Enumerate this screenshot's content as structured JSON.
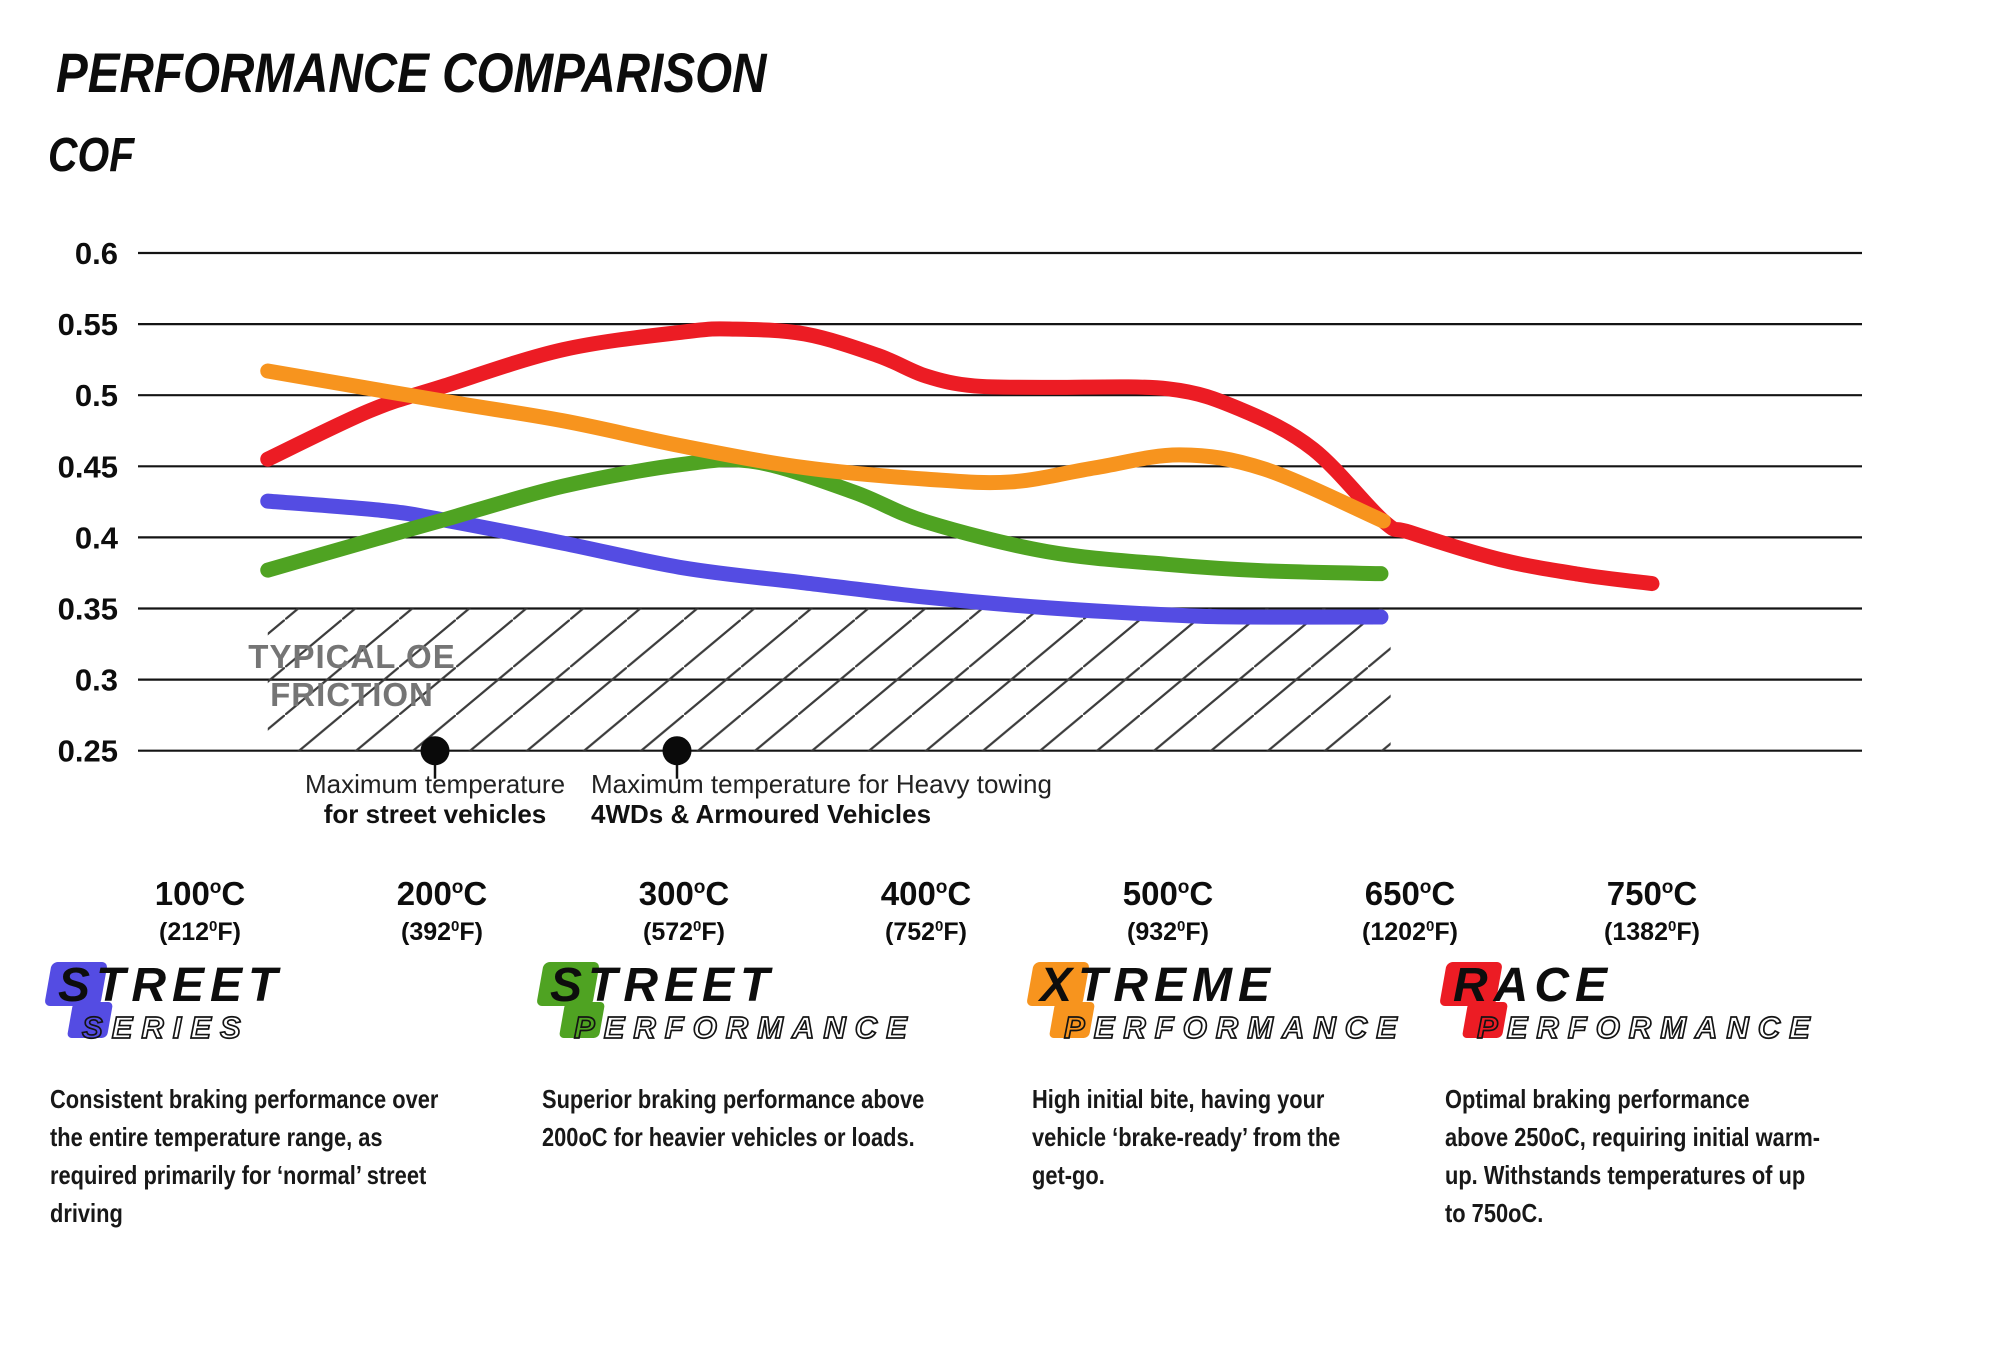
{
  "header": {
    "title": "PERFORMANCE COMPARISON",
    "y_axis_label": "COF"
  },
  "chart_data": {
    "type": "line",
    "title": "PERFORMANCE COMPARISON",
    "ylabel": "COF",
    "xlabel": "",
    "grid": "horizontal",
    "ylim": [
      0.25,
      0.6
    ],
    "y_ticks": [
      "0.6",
      "0.55",
      "0.5",
      "0.45",
      "0.4",
      "0.35",
      "0.3",
      "0.25"
    ],
    "x_ticks": [
      {
        "c": "100",
        "f": "212"
      },
      {
        "c": "200",
        "f": "392"
      },
      {
        "c": "300",
        "f": "572"
      },
      {
        "c": "400",
        "f": "752"
      },
      {
        "c": "500",
        "f": "932"
      },
      {
        "c": "650",
        "f": "1202"
      },
      {
        "c": "750",
        "f": "1382"
      }
    ],
    "series": [
      {
        "name": "Street Series",
        "color": "#544CE3",
        "points": [
          [
            0.28,
            0.4255
          ],
          [
            0.75,
            0.419
          ],
          [
            1,
            0.4125
          ],
          [
            1.5,
            0.396
          ],
          [
            2,
            0.3785
          ],
          [
            2.5,
            0.368
          ],
          [
            3,
            0.358
          ],
          [
            3.5,
            0.3505
          ],
          [
            4,
            0.3455
          ],
          [
            4.3,
            0.344
          ],
          [
            4.88,
            0.344
          ]
        ]
      },
      {
        "name": "Street Performance",
        "color": "#4FA322",
        "points": [
          [
            0.28,
            0.377
          ],
          [
            0.75,
            0.4
          ],
          [
            1,
            0.412
          ],
          [
            1.5,
            0.436
          ],
          [
            2,
            0.4515
          ],
          [
            2.3,
            0.453
          ],
          [
            2.7,
            0.432
          ],
          [
            3,
            0.411
          ],
          [
            3.5,
            0.39
          ],
          [
            4,
            0.381
          ],
          [
            4.4,
            0.3765
          ],
          [
            4.88,
            0.3745
          ]
        ]
      },
      {
        "name": "Race Performance",
        "color": "#EC1C24",
        "points": [
          [
            0.28,
            0.455
          ],
          [
            0.7,
            0.489
          ],
          [
            1,
            0.506
          ],
          [
            1.5,
            0.532
          ],
          [
            2,
            0.5445
          ],
          [
            2.2,
            0.5465
          ],
          [
            2.5,
            0.543
          ],
          [
            2.8,
            0.528
          ],
          [
            3,
            0.5135
          ],
          [
            3.2,
            0.5065
          ],
          [
            3.5,
            0.5055
          ],
          [
            4,
            0.5045
          ],
          [
            4.3,
            0.49
          ],
          [
            4.6,
            0.462
          ],
          [
            4.89,
            0.4115
          ],
          [
            5,
            0.4035
          ],
          [
            5.37,
            0.3845
          ],
          [
            5.7,
            0.374
          ],
          [
            6,
            0.3675
          ]
        ]
      },
      {
        "name": "Xtreme Performance",
        "color": "#F7941E",
        "points": [
          [
            0.28,
            0.517
          ],
          [
            1,
            0.496
          ],
          [
            1.5,
            0.482
          ],
          [
            2,
            0.464
          ],
          [
            2.5,
            0.449
          ],
          [
            3,
            0.441
          ],
          [
            3.35,
            0.439
          ],
          [
            3.7,
            0.449
          ],
          [
            4.05,
            0.458
          ],
          [
            4.4,
            0.448
          ],
          [
            4.89,
            0.4115
          ]
        ]
      }
    ],
    "oe_zone": {
      "label_line1": "TYPICAL OE",
      "label_line2": "FRICTION",
      "v_top": 0.35,
      "v_bottom": 0.25,
      "x_from_idx": 0.28,
      "x_to_idx": 4.92
    },
    "annotations": [
      {
        "x_idx": 1,
        "align": "middle",
        "line1": "Maximum temperature",
        "line2": "for street vehicles"
      },
      {
        "x_idx": 2,
        "align": "start",
        "line1": "Maximum temperature for Heavy towing",
        "line2": "4WDs & Armoured Vehicles"
      }
    ]
  },
  "legend": {
    "items": [
      {
        "line1": "STREET",
        "line2_initial": "S",
        "line2_rest": "ERIES",
        "color": "#544CE3",
        "desc": "Consistent braking performance over\nthe entire temperature range, as\nrequired primarily for ‘normal’ street\ndriving"
      },
      {
        "line1": "STREET",
        "line2_initial": "P",
        "line2_rest": "ERFORMANCE",
        "color": "#4FA322",
        "desc": "Superior braking performance above\n200oC for heavier vehicles or loads."
      },
      {
        "line1": "XTREME",
        "line2_initial": "P",
        "line2_rest": "ERFORMANCE",
        "color": "#F7941E",
        "desc": "High initial bite, having your\nvehicle ‘brake-ready’ from the\nget-go."
      },
      {
        "line1": "RACE",
        "line2_initial": "P",
        "line2_rest": "ERFORMANCE",
        "color": "#EC1C24",
        "desc": "Optimal braking performance\nabove 250oC, requiring initial warm-\nup. Withstands temperatures of up\nto 750oC."
      }
    ]
  }
}
